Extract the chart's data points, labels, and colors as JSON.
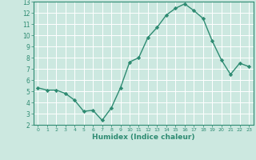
{
  "x": [
    0,
    1,
    2,
    3,
    4,
    5,
    6,
    7,
    8,
    9,
    10,
    11,
    12,
    13,
    14,
    15,
    16,
    17,
    18,
    19,
    20,
    21,
    22,
    23
  ],
  "y": [
    5.3,
    5.1,
    5.1,
    4.8,
    4.2,
    3.2,
    3.3,
    2.4,
    3.5,
    5.3,
    7.6,
    8.0,
    9.8,
    10.7,
    11.8,
    12.4,
    12.8,
    12.2,
    11.5,
    9.5,
    7.8,
    6.5,
    7.5,
    7.2
  ],
  "title": "",
  "xlabel": "Humidex (Indice chaleur)",
  "ylabel": "",
  "xlim": [
    -0.5,
    23.5
  ],
  "ylim": [
    2,
    13
  ],
  "yticks": [
    2,
    3,
    4,
    5,
    6,
    7,
    8,
    9,
    10,
    11,
    12,
    13
  ],
  "xticks": [
    0,
    1,
    2,
    3,
    4,
    5,
    6,
    7,
    8,
    9,
    10,
    11,
    12,
    13,
    14,
    15,
    16,
    17,
    18,
    19,
    20,
    21,
    22,
    23
  ],
  "line_color": "#2e8b72",
  "marker": "D",
  "marker_size": 2.2,
  "bg_color": "#cce8e0",
  "grid_color": "#ffffff",
  "tick_color": "#2e8b72",
  "label_color": "#2e8b72"
}
